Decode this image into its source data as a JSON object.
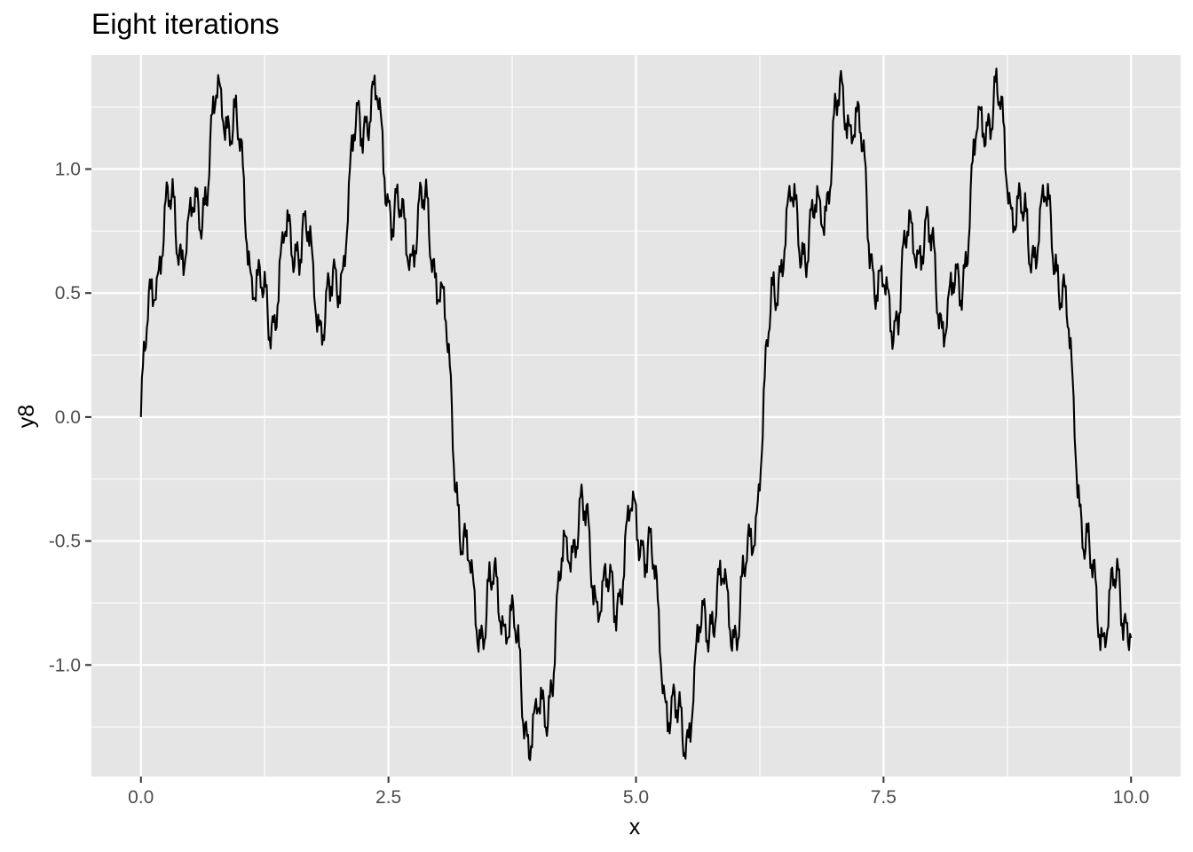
{
  "chart_data": {
    "type": "line",
    "title": "Eight iterations",
    "xlabel": "x",
    "ylabel": "y8",
    "xlim": [
      -0.5,
      10.5
    ],
    "ylim": [
      -1.45,
      1.46
    ],
    "x_ticks": [
      0,
      2.5,
      5,
      7.5,
      10
    ],
    "x_tick_labels": [
      "0.0",
      "2.5",
      "5.0",
      "7.5",
      "10.0"
    ],
    "y_ticks": [
      -1,
      -0.5,
      0,
      0.5,
      1
    ],
    "y_tick_labels": [
      "-1.0",
      "-0.5",
      "0.0",
      "0.5",
      "1.0"
    ],
    "grid": true,
    "series": [
      {
        "formula": "sum over k=0..7 of sin(3^k * x) / 2^k",
        "x_range": [
          0,
          10
        ],
        "n_points": 1001
      }
    ]
  },
  "style": {
    "panel_color": "#E5E5E5",
    "grid_color": "#FFFFFF",
    "line_color": "#000000",
    "tick_label_color": "#4D4D4D",
    "tick_mark_color": "#333333"
  }
}
